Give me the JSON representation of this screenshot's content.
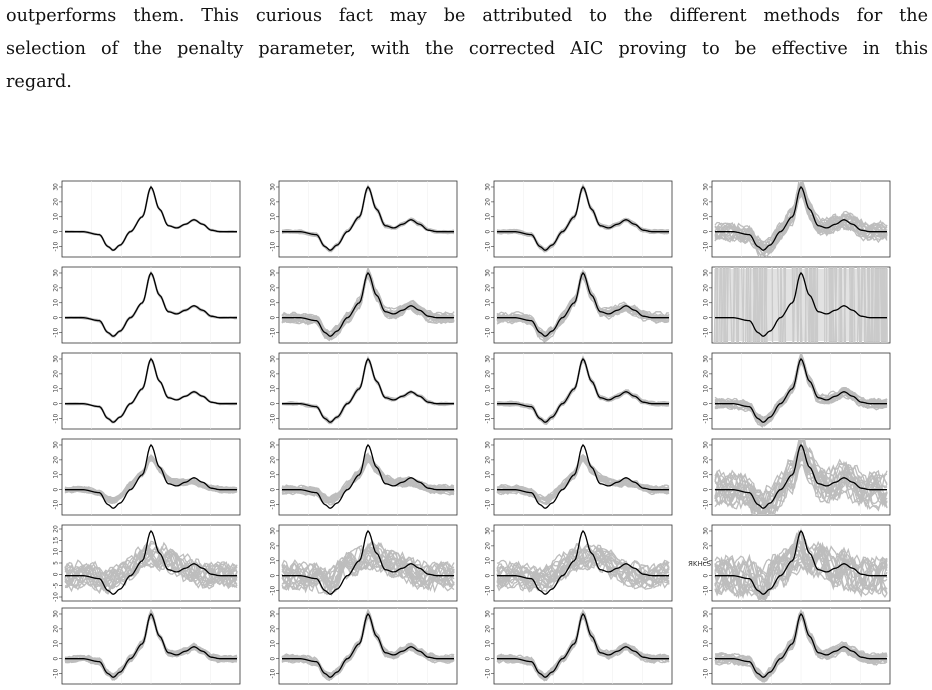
{
  "paragraph": {
    "lines": [
      "outperforms them. This curious fact may be attributed to the different methods for the",
      "selection of the penalty parameter, with the corrected AIC proving to be effective in this",
      "regard."
    ]
  },
  "figure": {
    "rows": 6,
    "cols": 4,
    "y_tick_labels": [
      "-10",
      "0",
      "10",
      "20",
      "30"
    ],
    "y_tick_labels_row5_col1": [
      "-10",
      "-5",
      "0",
      "5",
      "10",
      "15",
      "20"
    ],
    "stray_label": "ЯKHcS"
  },
  "chart_data": {
    "type": "line",
    "grid": "faint",
    "ylim": [
      -15,
      32
    ],
    "xlim": [
      0,
      1
    ],
    "series": [
      {
        "x": [
          0.0,
          0.1,
          0.2,
          0.25,
          0.28,
          0.32,
          0.38,
          0.45,
          0.5,
          0.55,
          0.6,
          0.65,
          0.7,
          0.75,
          0.8,
          0.85,
          0.9,
          0.95,
          1.0
        ],
        "values": [
          0,
          0,
          -2,
          -10,
          -12.5,
          -9,
          0,
          10,
          30,
          15,
          4,
          2.5,
          5,
          8,
          5,
          1,
          0,
          0,
          0
        ]
      }
    ]
  }
}
